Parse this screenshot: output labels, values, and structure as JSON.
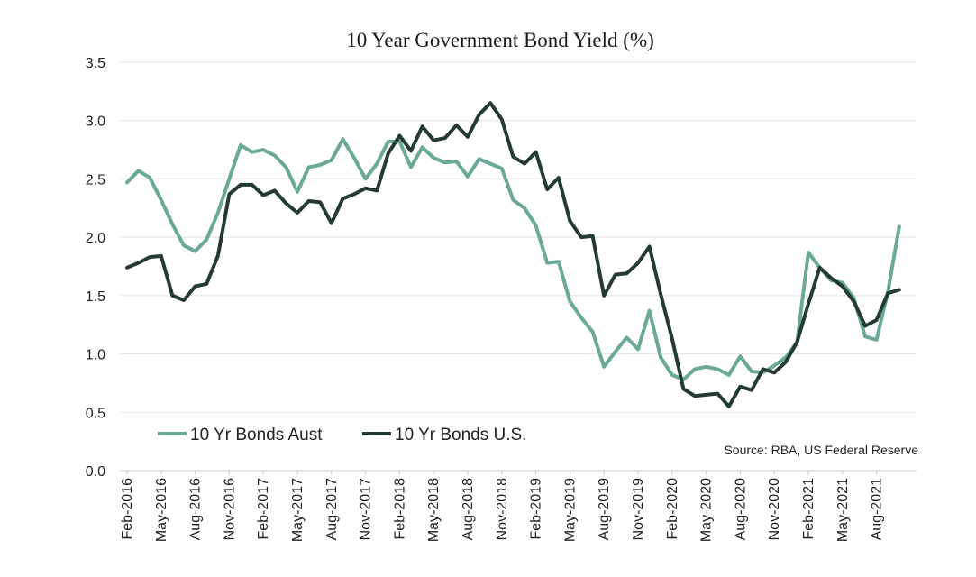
{
  "chart_data": {
    "type": "line",
    "title": "10 Year Government Bond Yield (%)",
    "source": "Source: RBA, US Federal Reserve",
    "xlabel": "",
    "ylabel": "",
    "ylim": [
      0,
      3.5
    ],
    "yticks": [
      "0.0",
      "0.5",
      "1.0",
      "1.5",
      "2.0",
      "2.5",
      "3.0",
      "3.5"
    ],
    "grid": true,
    "legend_position": "bottom-left",
    "x": [
      "Feb-2016",
      "Mar-2016",
      "Apr-2016",
      "May-2016",
      "Jun-2016",
      "Jul-2016",
      "Aug-2016",
      "Sep-2016",
      "Oct-2016",
      "Nov-2016",
      "Dec-2016",
      "Jan-2017",
      "Feb-2017",
      "Mar-2017",
      "Apr-2017",
      "May-2017",
      "Jun-2017",
      "Jul-2017",
      "Aug-2017",
      "Sep-2017",
      "Oct-2017",
      "Nov-2017",
      "Dec-2017",
      "Jan-2018",
      "Feb-2018",
      "Mar-2018",
      "Apr-2018",
      "May-2018",
      "Jun-2018",
      "Jul-2018",
      "Aug-2018",
      "Sep-2018",
      "Oct-2018",
      "Nov-2018",
      "Dec-2018",
      "Jan-2019",
      "Feb-2019",
      "Mar-2019",
      "Apr-2019",
      "May-2019",
      "Jun-2019",
      "Jul-2019",
      "Aug-2019",
      "Sep-2019",
      "Oct-2019",
      "Nov-2019",
      "Dec-2019",
      "Jan-2020",
      "Feb-2020",
      "Mar-2020",
      "Apr-2020",
      "May-2020",
      "Jun-2020",
      "Jul-2020",
      "Aug-2020",
      "Sep-2020",
      "Oct-2020",
      "Nov-2020",
      "Dec-2020",
      "Jan-2021",
      "Feb-2021",
      "Mar-2021",
      "Apr-2021",
      "May-2021",
      "Jun-2021",
      "Jul-2021",
      "Aug-2021",
      "Sep-2021",
      "Oct-2021"
    ],
    "x_tick_labels": [
      "Feb-2016",
      "May-2016",
      "Aug-2016",
      "Nov-2016",
      "Feb-2017",
      "May-2017",
      "Aug-2017",
      "Nov-2017",
      "Feb-2018",
      "May-2018",
      "Aug-2018",
      "Nov-2018",
      "Feb-2019",
      "May-2019",
      "Aug-2019",
      "Nov-2019",
      "Feb-2020",
      "May-2020",
      "Aug-2020",
      "Nov-2020",
      "Feb-2021",
      "May-2021",
      "Aug-2021"
    ],
    "series": [
      {
        "name": "10 Yr Bonds Aust",
        "color": "#6aa898",
        "values": [
          2.47,
          2.57,
          2.51,
          2.32,
          2.11,
          1.93,
          1.88,
          1.98,
          2.21,
          2.5,
          2.79,
          2.73,
          2.75,
          2.7,
          2.6,
          2.39,
          2.6,
          2.62,
          2.66,
          2.84,
          2.68,
          2.5,
          2.63,
          2.82,
          2.82,
          2.6,
          2.77,
          2.68,
          2.64,
          2.65,
          2.52,
          2.67,
          2.63,
          2.59,
          2.32,
          2.25,
          2.1,
          1.78,
          1.79,
          1.45,
          1.31,
          1.19,
          0.89,
          1.02,
          1.14,
          1.04,
          1.37,
          0.97,
          0.82,
          0.78,
          0.87,
          0.89,
          0.87,
          0.82,
          0.98,
          0.85,
          0.84,
          0.9,
          0.97,
          1.1,
          1.87,
          1.74,
          1.63,
          1.61,
          1.48,
          1.15,
          1.12,
          1.53,
          2.09
        ]
      },
      {
        "name": "10 Yr Bonds U.S.",
        "color": "#243b33",
        "values": [
          1.74,
          1.78,
          1.83,
          1.84,
          1.5,
          1.46,
          1.58,
          1.6,
          1.84,
          2.37,
          2.45,
          2.45,
          2.36,
          2.4,
          2.29,
          2.21,
          2.31,
          2.3,
          2.12,
          2.33,
          2.37,
          2.42,
          2.4,
          2.72,
          2.87,
          2.74,
          2.95,
          2.83,
          2.85,
          2.96,
          2.86,
          3.05,
          3.15,
          3.01,
          2.69,
          2.63,
          2.73,
          2.41,
          2.51,
          2.14,
          2.0,
          2.01,
          1.5,
          1.68,
          1.69,
          1.78,
          1.92,
          1.51,
          1.13,
          0.7,
          0.64,
          0.65,
          0.66,
          0.55,
          0.72,
          0.69,
          0.87,
          0.84,
          0.93,
          1.1,
          1.43,
          1.74,
          1.65,
          1.58,
          1.45,
          1.24,
          1.29,
          1.52,
          1.55
        ]
      }
    ]
  }
}
